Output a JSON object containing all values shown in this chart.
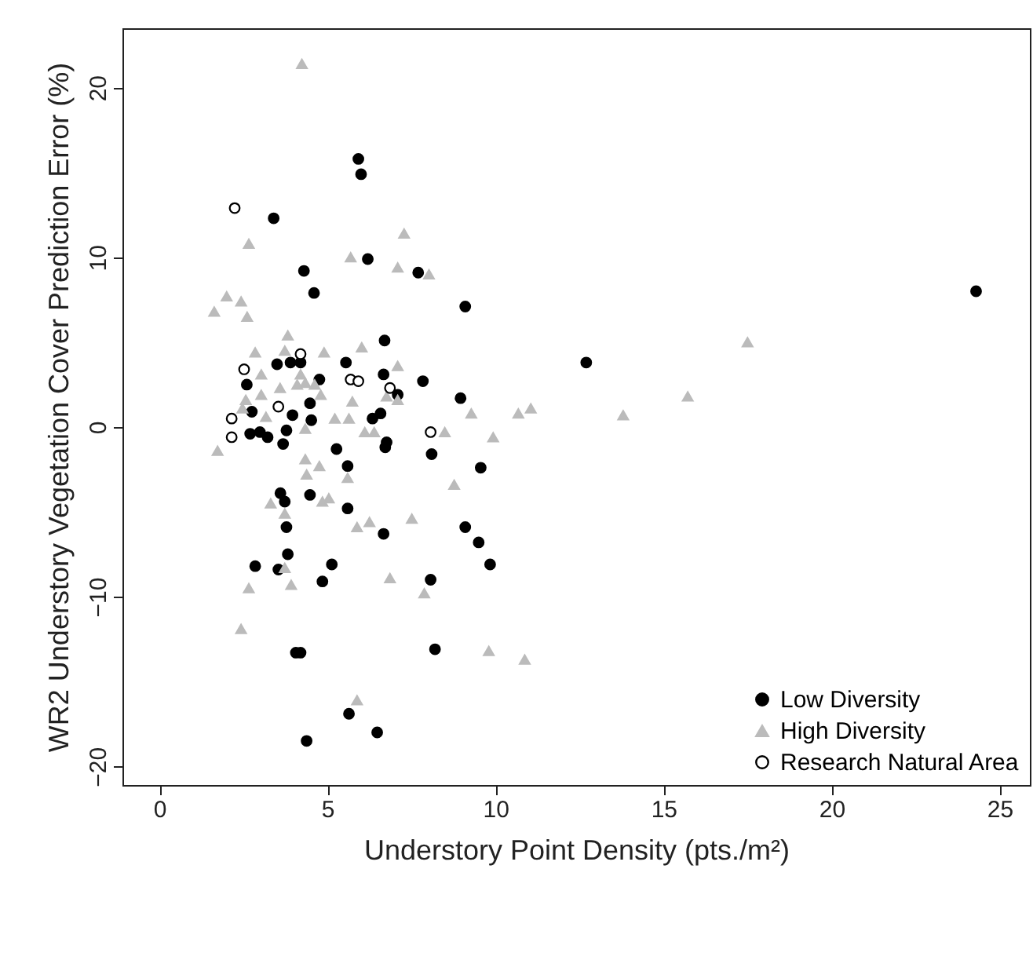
{
  "chart_data": {
    "type": "scatter",
    "xlabel": "Understory Point Density (pts./m²)",
    "ylabel": "WR2 Understory Vegetation Cover Prediction Error (%)",
    "xlim": [
      -1.1,
      25.9
    ],
    "ylim": [
      -21.1,
      23.5
    ],
    "xticks": [
      0,
      5,
      10,
      15,
      20,
      25
    ],
    "yticks": [
      -20,
      -10,
      0,
      10,
      20
    ],
    "grid": false,
    "legend": "bottom right",
    "series": [
      {
        "name": "Low Diversity",
        "color": "#000000",
        "marker": "circle",
        "x": [
          5.92,
          6.0,
          3.4,
          4.3,
          4.6,
          6.2,
          7.7,
          9.1,
          12.7,
          24.3,
          6.7,
          3.5,
          3.9,
          4.2,
          5.55,
          2.6,
          4.76,
          6.67,
          7.84,
          8.96,
          2.75,
          4.48,
          3.96,
          6.58,
          6.34,
          2.7,
          2.99,
          3.22,
          3.78,
          3.68,
          4.52,
          7.09,
          5.27,
          6.76,
          6.72,
          8.1,
          5.6,
          3.6,
          3.73,
          4.48,
          5.6,
          3.78,
          6.67,
          3.82,
          2.85,
          3.54,
          5.13,
          4.85,
          8.07,
          4.06,
          4.2,
          8.2,
          5.64,
          6.48,
          4.38,
          9.56,
          9.1,
          9.5,
          9.84
        ],
        "values": [
          15.8,
          14.9,
          12.3,
          9.2,
          7.9,
          9.9,
          9.1,
          7.1,
          3.8,
          8.0,
          5.1,
          3.7,
          3.8,
          3.8,
          3.8,
          2.5,
          2.8,
          3.1,
          2.7,
          1.7,
          0.9,
          1.4,
          0.7,
          0.8,
          0.5,
          -0.4,
          -0.3,
          -0.6,
          -0.2,
          -1.0,
          0.4,
          1.9,
          -1.3,
          -0.9,
          -1.2,
          -1.6,
          -2.3,
          -3.9,
          -4.4,
          -4.0,
          -4.8,
          -5.9,
          -6.3,
          -7.5,
          -8.2,
          -8.4,
          -8.1,
          -9.1,
          -9.0,
          -13.3,
          -13.3,
          -13.1,
          -16.9,
          -18.0,
          -18.5,
          -2.4,
          -5.9,
          -6.8,
          -8.1
        ]
      },
      {
        "name": "High Diversity",
        "color": "#bbbbbb",
        "marker": "triangle",
        "x": [
          4.24,
          7.28,
          2.66,
          5.69,
          7.09,
          8.02,
          2.0,
          2.43,
          1.63,
          2.61,
          3.82,
          6.02,
          2.85,
          3.73,
          4.9,
          7.09,
          3.03,
          4.2,
          4.34,
          4.1,
          4.62,
          3.59,
          3.03,
          4.8,
          2.57,
          5.74,
          6.76,
          7.09,
          2.47,
          3.17,
          5.22,
          5.64,
          4.34,
          6.11,
          6.39,
          8.49,
          1.73,
          4.34,
          4.76,
          4.38,
          5.6,
          8.77,
          5.04,
          4.85,
          3.31,
          3.73,
          5.88,
          6.25,
          7.51,
          3.73,
          2.66,
          3.92,
          6.86,
          7.88,
          2.43,
          5.88,
          17.5,
          15.72,
          13.8,
          9.28,
          10.68,
          11.05,
          9.93,
          9.8,
          10.87
        ],
        "values": [
          21.4,
          11.4,
          10.8,
          10.0,
          9.4,
          9.0,
          7.7,
          7.4,
          6.8,
          6.5,
          5.4,
          4.7,
          4.4,
          4.5,
          4.4,
          3.6,
          3.1,
          3.1,
          2.6,
          2.5,
          2.5,
          2.3,
          1.9,
          1.9,
          1.6,
          1.5,
          1.8,
          1.6,
          1.1,
          0.6,
          0.5,
          0.5,
          -0.1,
          -0.3,
          -0.3,
          -0.3,
          -1.4,
          -1.9,
          -2.3,
          -2.8,
          -3.0,
          -3.4,
          -4.2,
          -4.4,
          -4.5,
          -5.1,
          -5.9,
          -5.6,
          -5.4,
          -8.3,
          -9.5,
          -9.3,
          -8.9,
          -9.8,
          -11.9,
          -16.1,
          5.0,
          1.8,
          0.7,
          0.8,
          0.8,
          1.1,
          -0.6,
          -13.2,
          -13.7
        ]
      },
      {
        "name": "Research Natural Area",
        "color": "#000000",
        "marker": "circle",
        "x": [
          2.24,
          4.2,
          2.52,
          5.69,
          5.92,
          6.86,
          3.54,
          2.15,
          2.15,
          8.07
        ],
        "values": [
          12.9,
          4.3,
          3.4,
          2.8,
          2.7,
          2.3,
          1.2,
          0.5,
          -0.6,
          -0.3
        ]
      }
    ]
  }
}
